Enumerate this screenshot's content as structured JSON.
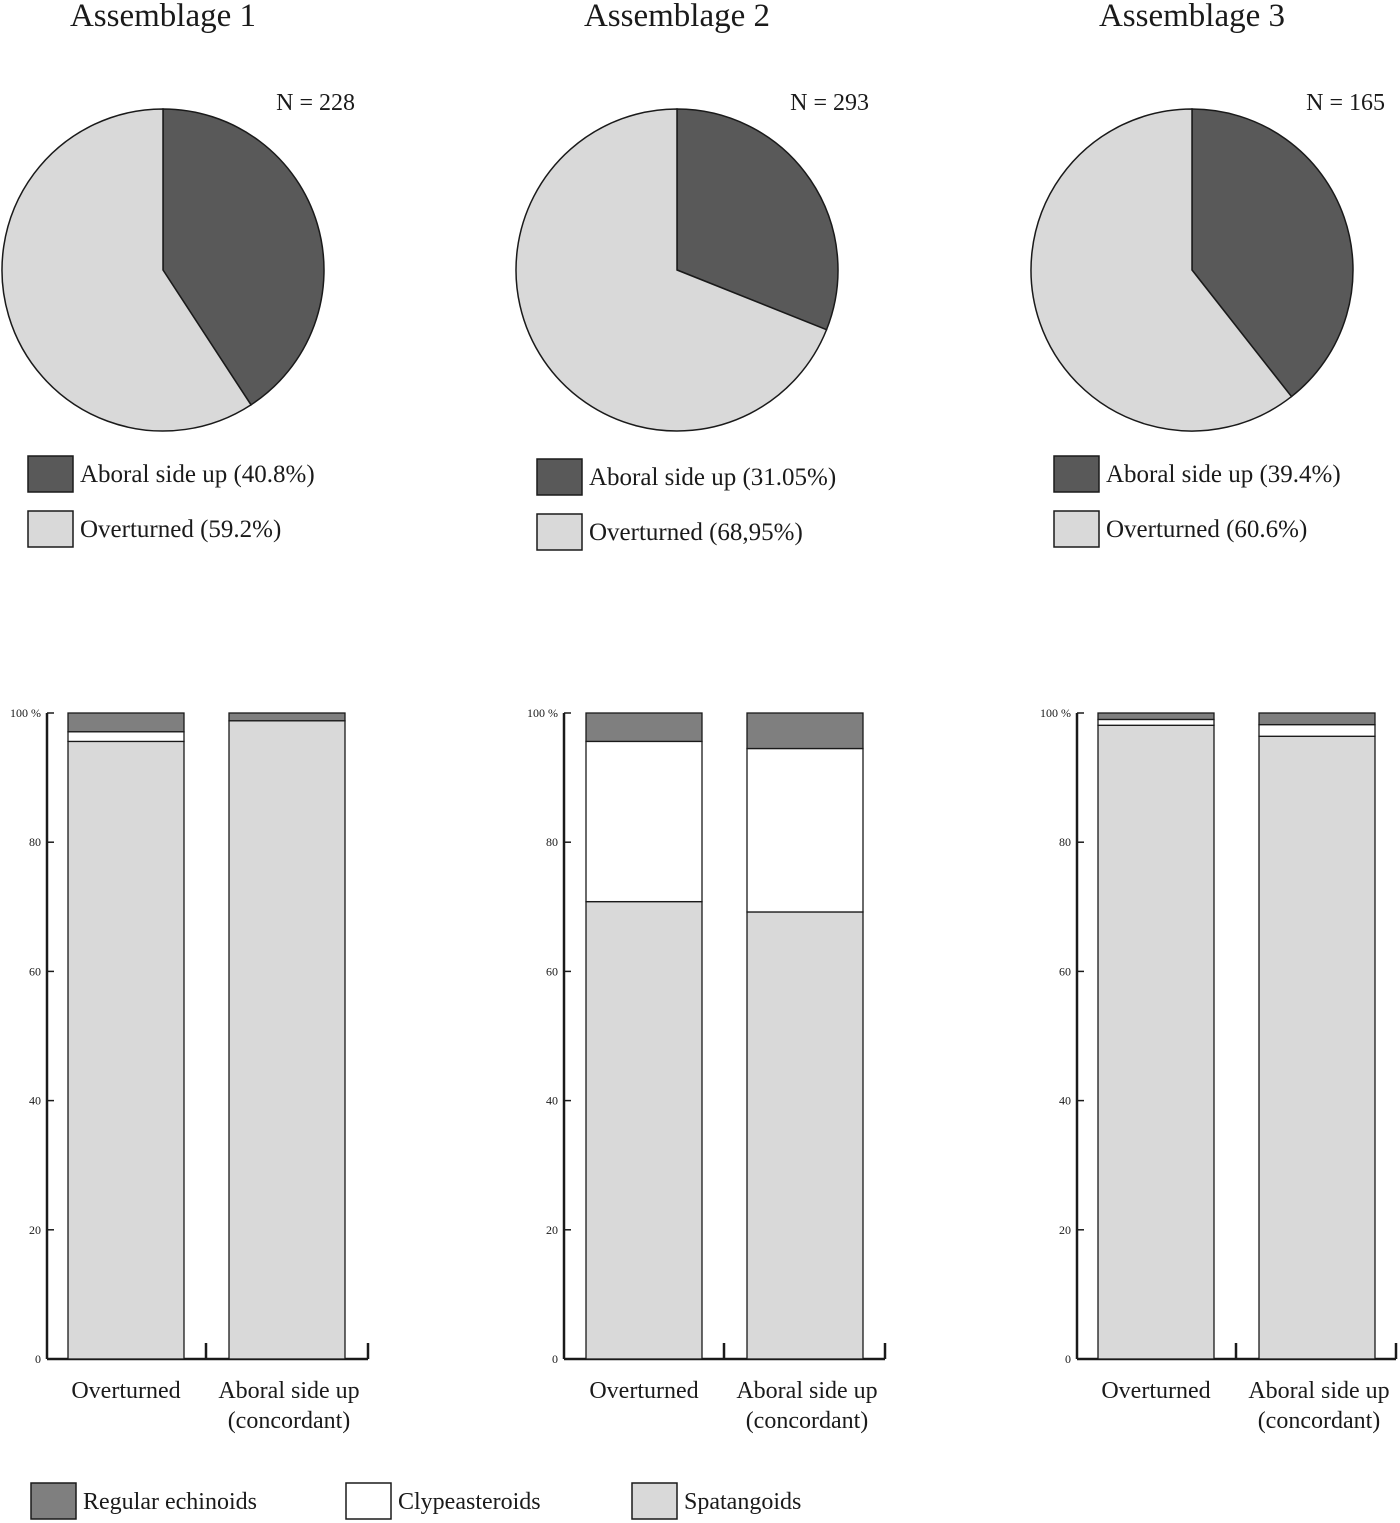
{
  "colors": {
    "aboral_pie": "#595959",
    "overturned_pie": "#d9d9d9",
    "regular_echinoids": "#7f7f7f",
    "clypeasteroids": "#ffffff",
    "spatangoids": "#d9d9d9",
    "outline": "#1a1a1a"
  },
  "chart_data": [
    {
      "type": "pie",
      "title": "Assemblage 1",
      "n_label": "N = 228",
      "slices": [
        {
          "label": "Aboral side up (40.8%)",
          "value": 40.8,
          "color_key": "aboral_pie"
        },
        {
          "label": "Overturned (59.2%)",
          "value": 59.2,
          "color_key": "overturned_pie"
        }
      ]
    },
    {
      "type": "pie",
      "title": "Assemblage 2",
      "n_label": "N = 293",
      "slices": [
        {
          "label": "Aboral side up (31.05%)",
          "value": 31.05,
          "color_key": "aboral_pie"
        },
        {
          "label": "Overturned (68,95%)",
          "value": 68.95,
          "color_key": "overturned_pie"
        }
      ]
    },
    {
      "type": "pie",
      "title": "Assemblage 3",
      "n_label": "N = 165",
      "slices": [
        {
          "label": "Aboral side up (39.4%)",
          "value": 39.4,
          "color_key": "aboral_pie"
        },
        {
          "label": "Overturned (60.6%)",
          "value": 60.6,
          "color_key": "overturned_pie"
        }
      ]
    },
    {
      "type": "bar",
      "stacked": true,
      "assemblage": "Assemblage 1",
      "ylim": [
        0,
        100
      ],
      "yticks": [
        "0",
        "20",
        "40",
        "60",
        "80",
        "100 %"
      ],
      "categories": [
        {
          "line1": "Overturned",
          "line2": ""
        },
        {
          "line1": "Aboral side up",
          "line2": "(concordant)"
        }
      ],
      "series": [
        {
          "name": "Spatangoids",
          "values": [
            95.6,
            98.8
          ]
        },
        {
          "name": "Clypeasteroids",
          "values": [
            1.5,
            0.0
          ]
        },
        {
          "name": "Regular echinoids",
          "values": [
            2.9,
            1.2
          ]
        }
      ]
    },
    {
      "type": "bar",
      "stacked": true,
      "assemblage": "Assemblage 2",
      "ylim": [
        0,
        100
      ],
      "yticks": [
        "0",
        "20",
        "40",
        "60",
        "80",
        "100 %"
      ],
      "categories": [
        {
          "line1": "Overturned",
          "line2": ""
        },
        {
          "line1": "Aboral side up",
          "line2": "(concordant)"
        }
      ],
      "series": [
        {
          "name": "Spatangoids",
          "values": [
            70.8,
            69.2
          ]
        },
        {
          "name": "Clypeasteroids",
          "values": [
            24.8,
            25.3
          ]
        },
        {
          "name": "Regular echinoids",
          "values": [
            4.4,
            5.5
          ]
        }
      ]
    },
    {
      "type": "bar",
      "stacked": true,
      "assemblage": "Assemblage 3",
      "ylim": [
        0,
        100
      ],
      "yticks": [
        "0",
        "20",
        "40",
        "60",
        "80",
        "100 %"
      ],
      "categories": [
        {
          "line1": "Overturned",
          "line2": ""
        },
        {
          "line1": "Aboral side up",
          "line2": "(concordant)"
        }
      ],
      "series": [
        {
          "name": "Spatangoids",
          "values": [
            98.1,
            96.4
          ]
        },
        {
          "name": "Clypeasteroids",
          "values": [
            0.9,
            1.8
          ]
        },
        {
          "name": "Regular echinoids",
          "values": [
            1.0,
            1.8
          ]
        }
      ]
    }
  ],
  "legend": [
    {
      "label": "Regular echinoids",
      "color_key": "regular_echinoids"
    },
    {
      "label": "Clypeasteroids",
      "color_key": "clypeasteroids"
    },
    {
      "label": "Spatangoids",
      "color_key": "spatangoids"
    }
  ]
}
